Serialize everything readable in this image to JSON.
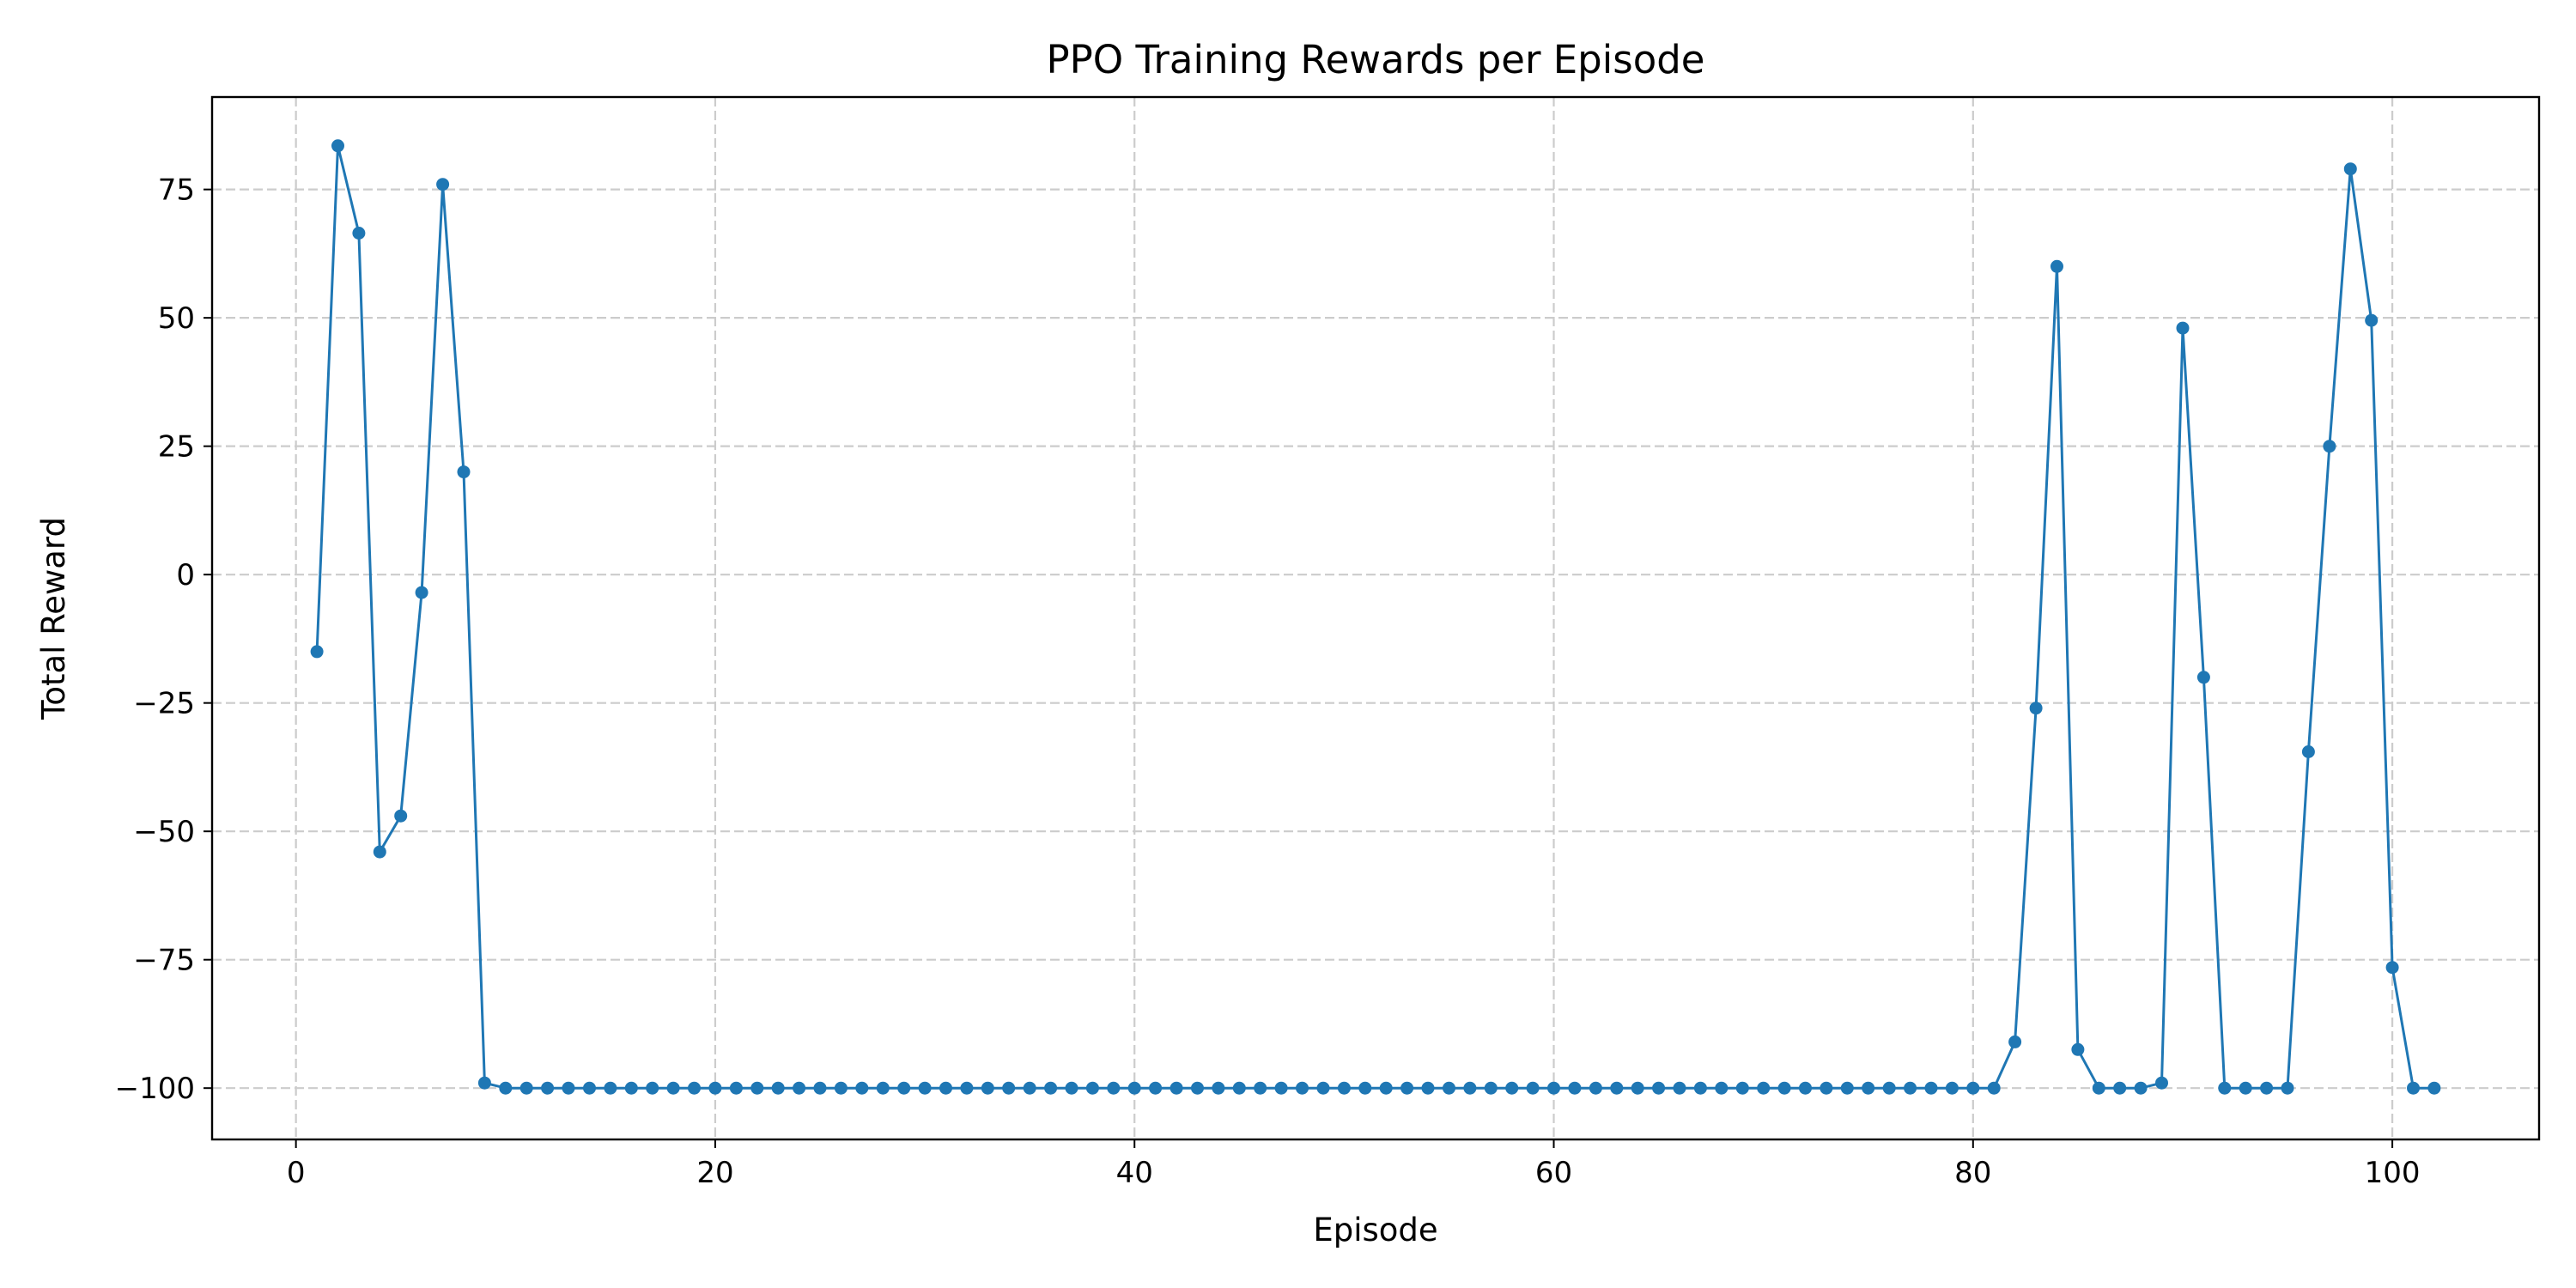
{
  "chart_data": {
    "type": "line",
    "title": "PPO Training Rewards per Episode",
    "xlabel": "Episode",
    "ylabel": "Total Reward",
    "xlim": [
      -4,
      107
    ],
    "ylim": [
      -110,
      93
    ],
    "xticks": [
      0,
      20,
      40,
      60,
      80,
      100
    ],
    "xtick_labels": [
      "0",
      "20",
      "40",
      "60",
      "80",
      "100"
    ],
    "yticks": [
      75,
      50,
      25,
      0,
      -25,
      -50,
      -75,
      -100
    ],
    "ytick_labels": [
      "75",
      "50",
      "25",
      "0",
      "−25",
      "−50",
      "−75",
      "−100"
    ],
    "grid": true,
    "color": "#1f77b4",
    "series": [
      {
        "x": [
          1,
          2,
          3,
          4,
          5,
          6,
          7,
          8,
          9,
          10,
          11,
          12,
          13,
          14,
          15,
          16,
          17,
          18,
          19,
          20,
          21,
          22,
          23,
          24,
          25,
          26,
          27,
          28,
          29,
          30,
          31,
          32,
          33,
          34,
          35,
          36,
          37,
          38,
          39,
          40,
          41,
          42,
          43,
          44,
          45,
          46,
          47,
          48,
          49,
          50,
          51,
          52,
          53,
          54,
          55,
          56,
          57,
          58,
          59,
          60,
          61,
          62,
          63,
          64,
          65,
          66,
          67,
          68,
          69,
          70,
          71,
          72,
          73,
          74,
          75,
          76,
          77,
          78,
          79,
          80,
          81,
          82,
          83,
          84,
          85,
          86,
          87,
          88,
          89,
          90,
          91,
          92,
          93,
          94,
          95,
          96,
          97,
          98,
          99,
          100,
          101,
          102
        ],
        "values": [
          -15,
          83.5,
          66.5,
          -54,
          -47,
          -3.5,
          76,
          20,
          -99,
          -100,
          -100,
          -100,
          -100,
          -100,
          -100,
          -100,
          -100,
          -100,
          -100,
          -100,
          -100,
          -100,
          -100,
          -100,
          -100,
          -100,
          -100,
          -100,
          -100,
          -100,
          -100,
          -100,
          -100,
          -100,
          -100,
          -100,
          -100,
          -100,
          -100,
          -100,
          -100,
          -100,
          -100,
          -100,
          -100,
          -100,
          -100,
          -100,
          -100,
          -100,
          -100,
          -100,
          -100,
          -100,
          -100,
          -100,
          -100,
          -100,
          -100,
          -100,
          -100,
          -100,
          -100,
          -100,
          -100,
          -100,
          -100,
          -100,
          -100,
          -100,
          -100,
          -100,
          -100,
          -100,
          -100,
          -100,
          -100,
          -100,
          -100,
          -100,
          -100,
          -91,
          -26,
          60,
          -92.5,
          -100,
          -100,
          -100,
          -99,
          48,
          -20,
          -100,
          -100,
          -100,
          -100,
          -34.5,
          25,
          79,
          49.5,
          -76.5,
          -100,
          -100
        ]
      }
    ]
  }
}
